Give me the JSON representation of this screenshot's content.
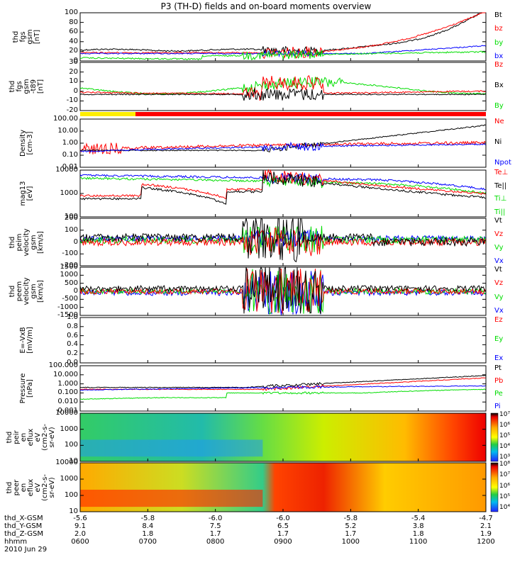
{
  "title": "P3 (TH-D) fields and on-board moments overview",
  "colors": {
    "black": "#000000",
    "red": "#ff0000",
    "green": "#00dd00",
    "blue": "#0000ff"
  },
  "panels": [
    {
      "id": "fgs-gsm",
      "ylabel": [
        "thd",
        "fgs",
        "gsm",
        "[nT]"
      ],
      "ticks": [
        "100",
        "80",
        "60",
        "40",
        "20",
        "0"
      ],
      "legend": [
        {
          "label": "Bt",
          "color": "#000000"
        },
        {
          "label": "bz",
          "color": "#ff0000"
        },
        {
          "label": "by",
          "color": "#00dd00"
        },
        {
          "label": "bx",
          "color": "#0000ff"
        }
      ]
    },
    {
      "id": "fgs-gse",
      "ylabel": [
        "thd",
        "fgs",
        "gsm",
        "-t89",
        "[nT]"
      ],
      "ticks": [
        "30",
        "20",
        "10",
        "0",
        "-10",
        "-20"
      ],
      "legend": [
        {
          "label": "Bz",
          "color": "#ff0000"
        },
        {
          "label": "Bx",
          "color": "#000000"
        },
        {
          "label": "By",
          "color": "#00dd00"
        }
      ]
    },
    {
      "id": "density",
      "ylabel": [
        "Density",
        "[cm-3]"
      ],
      "ticks": [
        "100.00",
        "10.00",
        "1.00",
        "0.10",
        "0.01"
      ],
      "legend": [
        {
          "label": "Ne",
          "color": "#ff0000"
        },
        {
          "label": "Ni",
          "color": "#000000"
        },
        {
          "label": "Npot",
          "color": "#0000ff"
        }
      ]
    },
    {
      "id": "temp",
      "ylabel": [
        "mag13",
        "[eV]"
      ],
      "ticks": [
        "10000",
        "1000",
        "100"
      ],
      "legend": [
        {
          "label": "Te⊥",
          "color": "#ff0000"
        },
        {
          "label": "Te||",
          "color": "#000000"
        },
        {
          "label": "Ti⊥",
          "color": "#00dd00"
        },
        {
          "label": "Ti||",
          "color": "#00dd00"
        }
      ]
    },
    {
      "id": "peim-vel",
      "ylabel": [
        "thd",
        "peim",
        "velocity",
        "gsm",
        "[km/s]"
      ],
      "ticks": [
        "200",
        "100",
        "0",
        "-100",
        "-200"
      ],
      "legend": [
        {
          "label": "Vt",
          "color": "#000000"
        },
        {
          "label": "Vz",
          "color": "#ff0000"
        },
        {
          "label": "Vy",
          "color": "#00dd00"
        },
        {
          "label": "Vx",
          "color": "#0000ff"
        }
      ]
    },
    {
      "id": "peem-vel",
      "ylabel": [
        "thd",
        "peem",
        "velocity",
        "gsm",
        "[km/s]"
      ],
      "ticks": [
        "1500",
        "1000",
        "500",
        "0",
        "-500",
        "-1000",
        "-1500"
      ],
      "legend": [
        {
          "label": "Vt",
          "color": "#000000"
        },
        {
          "label": "Vz",
          "color": "#ff0000"
        },
        {
          "label": "Vy",
          "color": "#00dd00"
        },
        {
          "label": "Vx",
          "color": "#0000ff"
        }
      ]
    },
    {
      "id": "efield",
      "ylabel": [
        "E=-VxB",
        "[mV/m]"
      ],
      "ticks": [
        "1.0",
        "0.8",
        "0.6",
        "0.4",
        "0.2",
        "0.0"
      ],
      "legend": [
        {
          "label": "Ez",
          "color": "#ff0000"
        },
        {
          "label": "Ey",
          "color": "#00dd00"
        },
        {
          "label": "Ex",
          "color": "#0000ff"
        }
      ]
    },
    {
      "id": "pressure",
      "ylabel": [
        "Pressure",
        "[nPa]"
      ],
      "ticks": [
        "100.000",
        "10.000",
        "1.000",
        "0.100",
        "0.010",
        "0.001"
      ],
      "legend": [
        {
          "label": "Pt",
          "color": "#000000"
        },
        {
          "label": "Pb",
          "color": "#ff0000"
        },
        {
          "label": "Pe",
          "color": "#00dd00"
        },
        {
          "label": "Pi",
          "color": "#0000ff"
        }
      ]
    },
    {
      "id": "peir-spec",
      "ylabel": [
        "thd",
        "peir",
        "en",
        "eflux",
        "eV",
        "(cm2-s-",
        "sr-eV)"
      ],
      "ticks": [
        "10000",
        "1000",
        "100",
        "10"
      ],
      "cbar": [
        "10⁷",
        "10⁶",
        "10⁵",
        "10⁴",
        "10³"
      ]
    },
    {
      "id": "peer-spec",
      "ylabel": [
        "thd",
        "peer",
        "en",
        "eflux",
        "eV",
        "(cm2-s-",
        "sr-eV)"
      ],
      "ticks": [
        "10000",
        "1000",
        "100",
        "10"
      ],
      "cbar": [
        "10⁸",
        "10⁷",
        "10⁶",
        "10⁵",
        "10⁴"
      ]
    }
  ],
  "footer": {
    "rows": [
      {
        "label": "thd_X-GSM",
        "values": [
          "-5.6",
          "-5.8",
          "-6.0",
          "-6.0",
          "-5.8",
          "-5.4",
          "-4.7"
        ]
      },
      {
        "label": "thd_Y-GSM",
        "values": [
          "9.1",
          "8.4",
          "7.5",
          "6.5",
          "5.2",
          "3.8",
          "2.1"
        ]
      },
      {
        "label": "thd_Z-GSM",
        "values": [
          "2.0",
          "1.8",
          "1.7",
          "1.7",
          "1.7",
          "1.8",
          "1.9"
        ]
      },
      {
        "label": "hhmm",
        "values": [
          "0600",
          "0700",
          "0800",
          "0900",
          "1000",
          "1100",
          "1200"
        ]
      }
    ],
    "date": "2010 Jun 29"
  },
  "chart_data": {
    "type": "line",
    "title": "P3 (TH-D) fields and on-board moments overview",
    "x": [
      "0600",
      "0700",
      "0800",
      "0900",
      "1000",
      "1100",
      "1200"
    ],
    "xlabel": "hhmm",
    "series": [
      {
        "name": "Bt",
        "values": [
          22,
          20,
          22,
          28,
          30,
          45,
          100
        ]
      },
      {
        "name": "bz",
        "values": [
          15,
          14,
          16,
          25,
          28,
          43,
          100
        ]
      },
      {
        "name": "by",
        "values": [
          -2,
          -4,
          -2,
          5,
          8,
          12,
          18
        ]
      },
      {
        "name": "bx",
        "values": [
          14,
          12,
          14,
          12,
          14,
          20,
          35
        ]
      },
      {
        "name": "Ne",
        "values": [
          0.3,
          0.25,
          0.3,
          0.3,
          0.5,
          0.9,
          1.5
        ]
      },
      {
        "name": "Ni",
        "values": [
          0.25,
          0.25,
          0.3,
          0.4,
          2,
          10,
          30
        ]
      },
      {
        "name": "Npot",
        "values": [
          0.2,
          0.2,
          0.2,
          0.15,
          0.3,
          0.5,
          0.9
        ]
      }
    ]
  }
}
